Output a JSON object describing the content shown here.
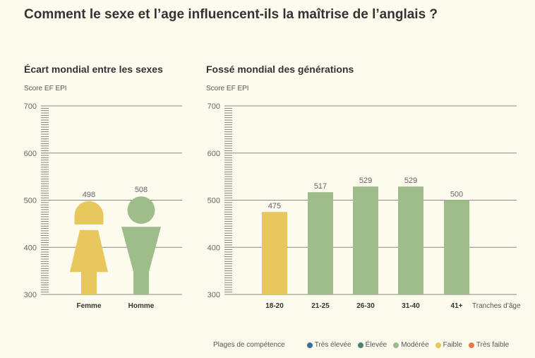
{
  "title": "Comment le sexe et l’age influencent-ils la maîtrise de l’anglais ?",
  "chart_data": [
    {
      "type": "bar",
      "title": "Écart mondial entre les sexes",
      "ylabel": "Score EF EPI",
      "xlabel": "",
      "ylim": [
        300,
        700
      ],
      "yticks": [
        "300",
        "400",
        "500",
        "600",
        "700"
      ],
      "categories": [
        "Femme",
        "Homme"
      ],
      "values": [
        498,
        508
      ],
      "value_labels": [
        "498",
        "508"
      ],
      "levels": [
        "Faible",
        "Modérée"
      ],
      "grid": true
    },
    {
      "type": "bar",
      "title": "Fossé mondial des générations",
      "ylabel": "Score EF EPI",
      "xlabel": "Tranches d’âge",
      "ylim": [
        300,
        700
      ],
      "yticks": [
        "300",
        "400",
        "500",
        "600",
        "700"
      ],
      "categories": [
        "18-20",
        "21-25",
        "26-30",
        "31-40",
        "41+"
      ],
      "values": [
        475,
        517,
        529,
        529,
        500
      ],
      "value_labels": [
        "475",
        "517",
        "529",
        "529",
        "500"
      ],
      "levels": [
        "Faible",
        "Modérée",
        "Modérée",
        "Modérée",
        "Modérée"
      ],
      "grid": true
    }
  ],
  "legend": {
    "title": "Plages de compétence",
    "items": [
      {
        "label": "Très élevée",
        "color": "#3b6f9c"
      },
      {
        "label": "Élevée",
        "color": "#4f7f77"
      },
      {
        "label": "Modérée",
        "color": "#9fbd8b"
      },
      {
        "label": "Faible",
        "color": "#e8c85c"
      },
      {
        "label": "Très faible",
        "color": "#e47a4f"
      }
    ]
  }
}
